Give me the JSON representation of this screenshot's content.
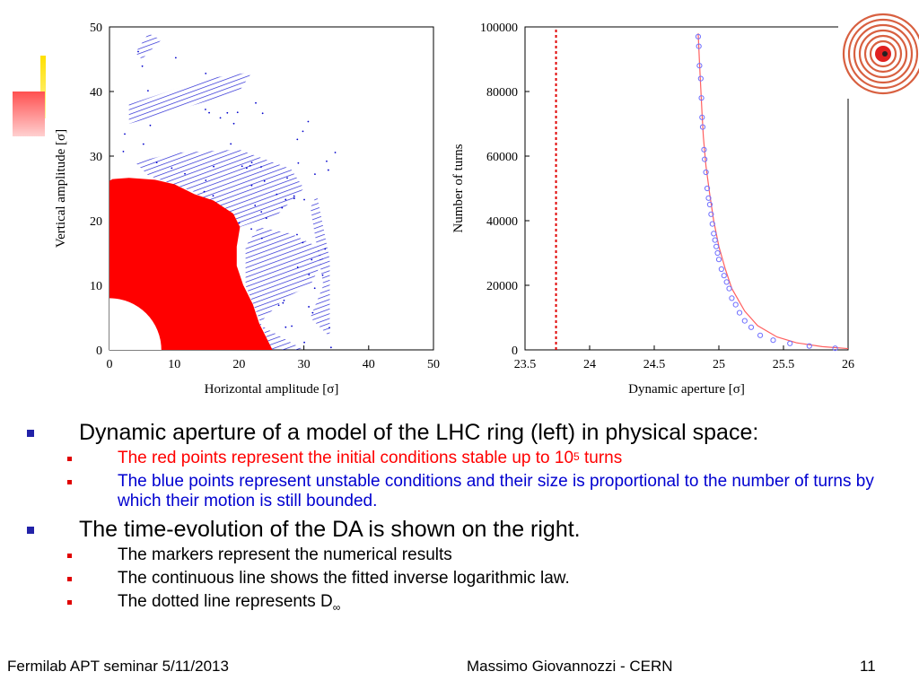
{
  "colors": {
    "stable": "#ff0000",
    "unstable": "#0000cc",
    "accent_red": "#ff2020",
    "accent_yellow": "#ffe000",
    "bullet_lvl1": "#2222a8",
    "bullet_lvl2": "#e00000"
  },
  "logo": {
    "icon": "accelerator-logo-icon"
  },
  "chart_data": [
    {
      "type": "scatter",
      "title": "",
      "xlabel": "Horizontal amplitude [σ]",
      "ylabel": "Vertical amplitude [σ]",
      "xlim": [
        0,
        50
      ],
      "ylim": [
        0,
        50
      ],
      "xticks": [
        "0",
        "10",
        "20",
        "30",
        "40",
        "50"
      ],
      "yticks": [
        "0",
        "10",
        "20",
        "30",
        "40",
        "50"
      ],
      "grid": false,
      "series": [
        {
          "color": "#ff0000",
          "boundary": [
            [
              8,
              0
            ],
            [
              25,
              0
            ],
            [
              24,
              2
            ],
            [
              23,
              4
            ],
            [
              22,
              7
            ],
            [
              20.5,
              10
            ],
            [
              19.5,
              13
            ],
            [
              19.5,
              16
            ],
            [
              20,
              19
            ],
            [
              19,
              21
            ],
            [
              16,
              23
            ],
            [
              13,
              24
            ],
            [
              10,
              25.5
            ],
            [
              7,
              26.2
            ],
            [
              3,
              26.5
            ],
            [
              0.5,
              26.3
            ],
            [
              0,
              26
            ],
            [
              0,
              8
            ]
          ],
          "inner_radius": 8
        },
        {
          "color": "#0000cc",
          "regions": [
            [
              [
                20,
                19
              ],
              [
                26,
                21
              ],
              [
                30,
                25
              ],
              [
                28,
                28
              ],
              [
                20,
                31
              ],
              [
                10,
                30.5
              ],
              [
                4,
                29
              ],
              [
                6,
                27
              ],
              [
                13,
                24.5
              ]
            ],
            [
              [
                23,
                4
              ],
              [
                27,
                8
              ],
              [
                31,
                10
              ],
              [
                33,
                14
              ],
              [
                32,
                16
              ],
              [
                28,
                18
              ],
              [
                23,
                19
              ],
              [
                21,
                16
              ],
              [
                21,
                10
              ],
              [
                25,
                0
              ],
              [
                30,
                0
              ]
            ],
            [
              [
                31,
                5
              ],
              [
                33,
                10
              ],
              [
                31,
                22
              ],
              [
                32,
                24
              ],
              [
                34,
                14
              ],
              [
                34,
                2
              ]
            ],
            [
              [
                3,
                38
              ],
              [
                15,
                42
              ],
              [
                22,
                43
              ],
              [
                20,
                40
              ],
              [
                10,
                37
              ],
              [
                3,
                35
              ]
            ],
            [
              [
                5,
                45
              ],
              [
                8,
                48
              ],
              [
                6,
                49
              ],
              [
                4,
                46
              ]
            ]
          ]
        }
      ]
    },
    {
      "type": "line",
      "title": "",
      "xlabel": "Dynamic aperture [σ]",
      "ylabel": "Number of turns",
      "xlim": [
        23.5,
        26
      ],
      "ylim": [
        0,
        100000
      ],
      "xticks": [
        "23.5",
        "24",
        "24.5",
        "25",
        "25.5",
        "26"
      ],
      "yticks": [
        "0",
        "20000",
        "40000",
        "60000",
        "80000",
        "100000"
      ],
      "grid": false,
      "series": [
        {
          "color": "#ff6060",
          "x": [
            24.84,
            24.85,
            24.86,
            24.87,
            24.88,
            24.9,
            24.93,
            24.96,
            25,
            25.05,
            25.1,
            25.2,
            25.3,
            25.45,
            25.6,
            25.8,
            26
          ],
          "y": [
            98000,
            89000,
            81000,
            73000,
            66000,
            57000,
            48000,
            40000,
            32000,
            25000,
            19000,
            12000,
            7500,
            4000,
            2200,
            1000,
            400
          ]
        },
        {
          "color": "#7070ff",
          "x": [
            24.84,
            24.845,
            24.85,
            24.86,
            24.865,
            24.87,
            24.875,
            24.885,
            24.89,
            24.9,
            24.91,
            24.92,
            24.93,
            24.94,
            24.95,
            24.96,
            24.97,
            24.98,
            24.99,
            25.0,
            25.02,
            25.04,
            25.06,
            25.08,
            25.1,
            25.13,
            25.16,
            25.2,
            25.25,
            25.32,
            25.42,
            25.55,
            25.7,
            25.9
          ],
          "y": [
            97000,
            94000,
            88000,
            84000,
            78000,
            72000,
            69000,
            62000,
            59000,
            55000,
            50000,
            47000,
            45000,
            42000,
            39000,
            36000,
            34000,
            32000,
            30000,
            28000,
            25000,
            23000,
            21000,
            19000,
            16000,
            14000,
            11500,
            9000,
            7000,
            4500,
            3000,
            2000,
            1200,
            500
          ]
        },
        {
          "color": "#e00000",
          "x": [
            23.74,
            23.74
          ],
          "y": [
            0,
            100000
          ]
        }
      ]
    }
  ],
  "bullets": [
    {
      "text": "Dynamic aperture of a model of the LHC ring (left) in physical space:",
      "children": [
        {
          "text": "The red points represent the initial conditions stable up to 10",
          "sup": "5",
          "after": " turns",
          "color": "red"
        },
        {
          "text": "The blue points represent unstable conditions and their size is proportional to the number of turns by which their motion is still bounded.",
          "color": "blue"
        }
      ]
    },
    {
      "text": "The time-evolution of the DA is shown on the right.",
      "children": [
        {
          "text": "The markers represent the numerical results",
          "color": "black"
        },
        {
          "text": "The continuous line shows the fitted inverse logarithmic law.",
          "color": "black"
        },
        {
          "text": "The dotted line represents D",
          "sub": "∞",
          "color": "black"
        }
      ]
    }
  ],
  "footer": {
    "left": "Fermilab APT seminar 5/11/2013",
    "center": "Massimo Giovannozzi - CERN",
    "page": "11"
  }
}
